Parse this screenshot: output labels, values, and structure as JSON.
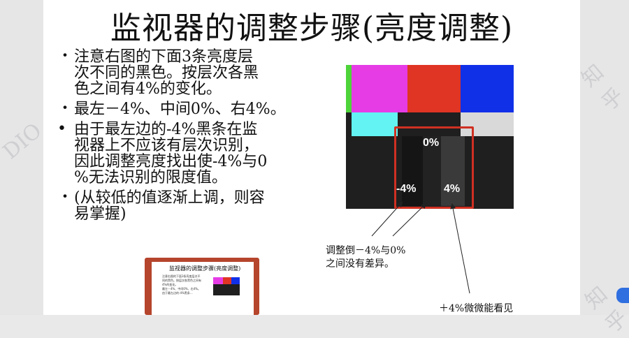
{
  "slide": {
    "title": "监视器的调整步骤(亮度调整)",
    "bullets": [
      {
        "marker": "・",
        "text": "注意右图的下面3条亮度层\n次不同的黑色。按层次各黑\n色之间有4%的变化。"
      },
      {
        "marker": "・",
        "text": "最左－4%、中间0%、右4%。"
      },
      {
        "marker": "•",
        "text": "由于最左边的-4%黑条在监\n视器上不应该有层次识别，\n因此调整亮度找出使-4%与0\n%无法识别的限度值。"
      },
      {
        "marker": "・",
        "text": "(从较低的值逐渐上调，则容\n易掌握)"
      }
    ],
    "test_image": {
      "label_zero": "0%",
      "label_minus": "-4%",
      "label_plus": "4%",
      "colors": {
        "magenta": "#e63ce6",
        "red": "#e03424",
        "blue": "#1030e8",
        "green": "#4ed43a",
        "cyan": "#62f3f2",
        "white": "#d9d9d9",
        "dark": "#1f1f1f",
        "minus4": "#151515",
        "zero": "#222222",
        "plus4": "#3a3a3a",
        "highlight": "#d03022"
      }
    },
    "annotation_left": "调整倒－4%与0%\n之间没有差异。",
    "annotation_right": "＋4%微微能看见"
  },
  "thumbnail": {
    "title": "监视器的调整步骤(亮度调整)",
    "text": "注意右图的下面3条亮度层次不同的黑色。按层次各黑色之间有4%的变化。\n最左－4%、中间0%、右4%。\n由于最左边的-4%黑条…"
  },
  "watermarks": [
    "DIO",
    "知乎",
    "知乎"
  ]
}
